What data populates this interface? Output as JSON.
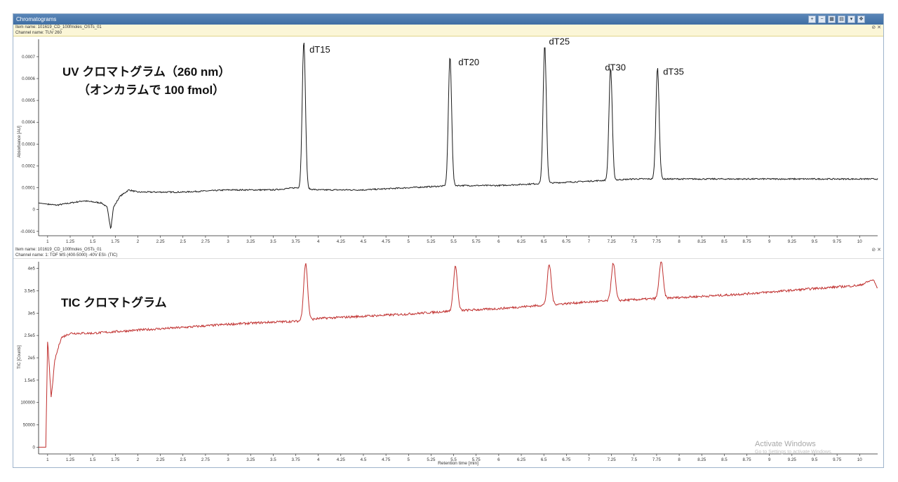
{
  "window": {
    "title": "Chromatograms",
    "toolbar_icons": [
      "zoom-in-icon",
      "zoom-out-icon",
      "grid-icon",
      "export-icon",
      "dropdown-icon",
      "pin-icon"
    ]
  },
  "panels": [
    {
      "item_name": "Item name: 101619_CD_100fmoles_OSTs_01",
      "channel_name": "Channel name: TUV 260"
    },
    {
      "item_name": "Item name: 101619_CD_100fmoles_OSTs_01",
      "channel_name": "Channel name: 1: TOF MS (400-5000) -40V ESI- (TIC)"
    }
  ],
  "watermark": {
    "line1": "Activate Windows",
    "line2": "Go to Settings to activate Windows."
  },
  "chart_data": [
    {
      "type": "line",
      "annotation_title": "UV クロマトグラム（260 nm）",
      "annotation_subtitle": "（オンカラムで 100 fmol）",
      "ylabel": "Absorbance [AU]",
      "xlabel": "",
      "xlim": [
        0.9,
        10.2
      ],
      "ylim": [
        -0.00012,
        0.00078
      ],
      "xticks": [
        "1",
        "1.25",
        "1.5",
        "1.75",
        "2",
        "2.25",
        "2.5",
        "2.75",
        "3",
        "3.25",
        "3.5",
        "3.75",
        "4",
        "4.25",
        "4.5",
        "4.75",
        "5",
        "5.25",
        "5.5",
        "5.75",
        "6",
        "6.25",
        "6.5",
        "6.75",
        "7",
        "7.25",
        "7.5",
        "7.75",
        "8",
        "8.25",
        "8.5",
        "8.75",
        "9",
        "9.25",
        "9.5",
        "9.75",
        "10"
      ],
      "yticks": [
        "-0.0001",
        "0",
        "0.0001",
        "0.0002",
        "0.0003",
        "0.0004",
        "0.0005",
        "0.0006",
        "0.0007"
      ],
      "color": "#1a1a1a",
      "baseline": [
        [
          0.9,
          3e-05
        ],
        [
          1.1,
          2e-05
        ],
        [
          1.4,
          4e-05
        ],
        [
          1.6,
          3e-05
        ],
        [
          1.66,
          1e-05
        ],
        [
          1.7,
          -9e-05
        ],
        [
          1.73,
          1e-05
        ],
        [
          1.8,
          6e-05
        ],
        [
          1.9,
          9e-05
        ],
        [
          2.0,
          8e-05
        ],
        [
          2.5,
          8e-05
        ],
        [
          3.0,
          9e-05
        ],
        [
          3.5,
          9e-05
        ],
        [
          3.75,
          0.0001
        ],
        [
          4.0,
          9e-05
        ],
        [
          4.5,
          9e-05
        ],
        [
          5.0,
          0.0001
        ],
        [
          5.5,
          0.00011
        ],
        [
          6.0,
          0.00011
        ],
        [
          6.5,
          0.00012
        ],
        [
          7.0,
          0.00013
        ],
        [
          7.5,
          0.00014
        ],
        [
          8.0,
          0.00014
        ],
        [
          9.0,
          0.00014
        ],
        [
          10.2,
          0.00014
        ]
      ],
      "peaks": [
        {
          "label": "dT15",
          "rt": 3.84,
          "height": 0.00077
        },
        {
          "label": "dT20",
          "rt": 5.46,
          "height": 0.0007
        },
        {
          "label": "dT25",
          "rt": 6.51,
          "height": 0.00075
        },
        {
          "label": "dT30",
          "rt": 7.24,
          "height": 0.00065
        },
        {
          "label": "dT35",
          "rt": 7.76,
          "height": 0.00065
        }
      ]
    },
    {
      "type": "line",
      "annotation_title": "TIC クロマトグラム",
      "ylabel": "TIC [Counts]",
      "xlabel": "Retention time [min]",
      "xlim": [
        0.9,
        10.2
      ],
      "ylim": [
        -15000,
        415000
      ],
      "xticks": [
        "1",
        "1.25",
        "1.5",
        "1.75",
        "2",
        "2.25",
        "2.5",
        "2.75",
        "3",
        "3.25",
        "3.5",
        "3.75",
        "4",
        "4.25",
        "4.5",
        "4.75",
        "5",
        "5.25",
        "5.5",
        "5.75",
        "6",
        "6.25",
        "6.5",
        "6.75",
        "7",
        "7.25",
        "7.5",
        "7.75",
        "8",
        "8.25",
        "8.5",
        "8.75",
        "9",
        "9.25",
        "9.5",
        "9.75",
        "10"
      ],
      "yticks": [
        "0",
        "50000",
        "100000",
        "1.5e5",
        "2e5",
        "2.5e5",
        "3e5",
        "3.5e5",
        "4e5"
      ],
      "color": "#c0302f",
      "baseline": [
        [
          0.9,
          0
        ],
        [
          0.98,
          0
        ],
        [
          1.0,
          240000
        ],
        [
          1.04,
          110000
        ],
        [
          1.08,
          195000
        ],
        [
          1.15,
          245000
        ],
        [
          1.25,
          255000
        ],
        [
          1.5,
          255000
        ],
        [
          2.0,
          262000
        ],
        [
          2.5,
          268000
        ],
        [
          3.0,
          275000
        ],
        [
          3.5,
          280000
        ],
        [
          3.8,
          282000
        ],
        [
          4.0,
          288000
        ],
        [
          4.5,
          293000
        ],
        [
          5.0,
          298000
        ],
        [
          5.5,
          305000
        ],
        [
          6.0,
          310000
        ],
        [
          6.5,
          318000
        ],
        [
          7.0,
          325000
        ],
        [
          7.5,
          330000
        ],
        [
          8.0,
          335000
        ],
        [
          8.5,
          340000
        ],
        [
          9.0,
          347000
        ],
        [
          9.5,
          355000
        ],
        [
          10.0,
          362000
        ],
        [
          10.15,
          375000
        ],
        [
          10.2,
          355000
        ]
      ],
      "peaks": [
        {
          "label": "",
          "rt": 3.86,
          "height": 411000
        },
        {
          "label": "",
          "rt": 5.52,
          "height": 405000
        },
        {
          "label": "",
          "rt": 6.56,
          "height": 408000
        },
        {
          "label": "",
          "rt": 7.27,
          "height": 412000
        },
        {
          "label": "",
          "rt": 7.8,
          "height": 415000
        }
      ]
    }
  ]
}
